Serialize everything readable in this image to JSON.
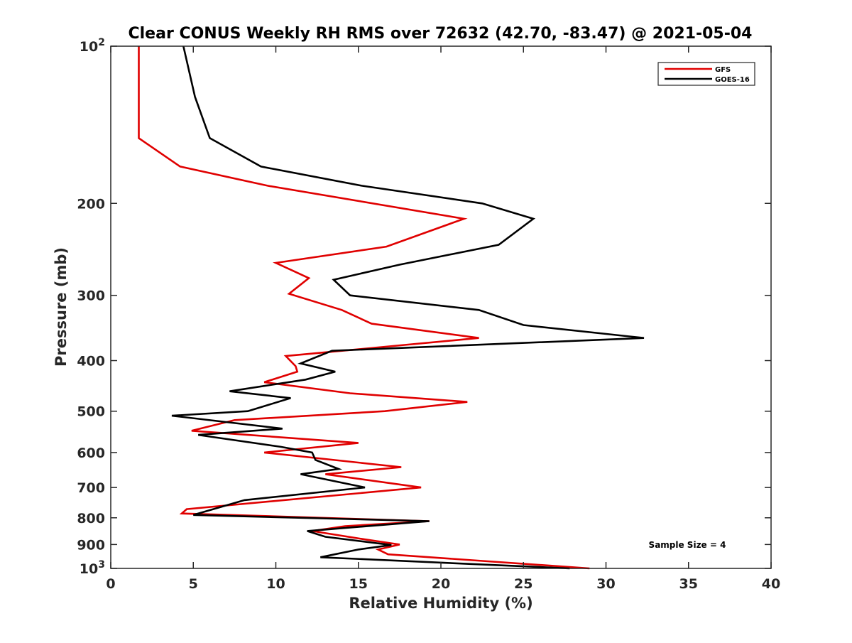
{
  "chart_data": {
    "type": "line",
    "title": "Clear CONUS Weekly RH RMS over 72632 (42.70, -83.47) @ 2021-05-04",
    "xlabel": "Relative Humidity (%)",
    "ylabel": "Pressure (mb)",
    "xlim": [
      0,
      40
    ],
    "ylim": [
      100,
      1000
    ],
    "yscale": "log",
    "y_reversed": true,
    "grid": false,
    "legend_position": "top-right",
    "x_ticks": [
      0,
      5,
      10,
      15,
      20,
      25,
      30,
      35,
      40
    ],
    "x_tick_labels": [
      "0",
      "5",
      "10",
      "15",
      "20",
      "25",
      "30",
      "35",
      "40"
    ],
    "y_ticks": [
      100,
      200,
      300,
      400,
      500,
      600,
      700,
      800,
      900,
      1000
    ],
    "y_tick_labels": [
      {
        "base": "10",
        "exp": "2"
      },
      {
        "base": "200",
        "exp": ""
      },
      {
        "base": "300",
        "exp": ""
      },
      {
        "base": "400",
        "exp": ""
      },
      {
        "base": "500",
        "exp": ""
      },
      {
        "base": "600",
        "exp": ""
      },
      {
        "base": "700",
        "exp": ""
      },
      {
        "base": "800",
        "exp": ""
      },
      {
        "base": "900",
        "exp": ""
      },
      {
        "base": "10",
        "exp": "3"
      }
    ],
    "annotation": "Sample Size = 4",
    "series": [
      {
        "name": "GFS",
        "color": "#e00000",
        "points": [
          [
            1.7,
            100
          ],
          [
            1.7,
            125
          ],
          [
            1.7,
            150
          ],
          [
            4.2,
            170
          ],
          [
            9.5,
            185
          ],
          [
            21.4,
            214
          ],
          [
            16.7,
            242
          ],
          [
            10.0,
            260
          ],
          [
            12.0,
            278
          ],
          [
            10.8,
            298
          ],
          [
            14.0,
            320
          ],
          [
            15.8,
            340
          ],
          [
            22.3,
            362
          ],
          [
            10.6,
            392
          ],
          [
            11.2,
            410
          ],
          [
            11.3,
            420
          ],
          [
            9.3,
            440
          ],
          [
            14.5,
            462
          ],
          [
            21.6,
            480
          ],
          [
            16.6,
            500
          ],
          [
            7.5,
            520
          ],
          [
            4.9,
            545
          ],
          [
            15.0,
            575
          ],
          [
            9.3,
            600
          ],
          [
            17.6,
            640
          ],
          [
            13.0,
            660
          ],
          [
            18.8,
            700
          ],
          [
            4.6,
            770
          ],
          [
            4.3,
            785
          ],
          [
            19.3,
            812
          ],
          [
            14.2,
            830
          ],
          [
            12.2,
            848
          ],
          [
            15.4,
            880
          ],
          [
            17.5,
            900
          ],
          [
            16.2,
            920
          ],
          [
            16.8,
            940
          ],
          [
            29.0,
            1000
          ]
        ]
      },
      {
        "name": "GOES-16",
        "color": "#000000",
        "points": [
          [
            4.4,
            100
          ],
          [
            5.1,
            125
          ],
          [
            6.0,
            150
          ],
          [
            9.1,
            170
          ],
          [
            15.2,
            185
          ],
          [
            22.5,
            200
          ],
          [
            25.6,
            214
          ],
          [
            23.5,
            240
          ],
          [
            17.5,
            262
          ],
          [
            13.5,
            280
          ],
          [
            14.5,
            300
          ],
          [
            22.3,
            320
          ],
          [
            25.0,
            342
          ],
          [
            32.3,
            362
          ],
          [
            13.4,
            383
          ],
          [
            11.5,
            405
          ],
          [
            13.6,
            420
          ],
          [
            11.8,
            435
          ],
          [
            7.2,
            458
          ],
          [
            10.9,
            472
          ],
          [
            8.3,
            500
          ],
          [
            3.7,
            510
          ],
          [
            10.4,
            540
          ],
          [
            5.3,
            555
          ],
          [
            10.3,
            585
          ],
          [
            12.2,
            600
          ],
          [
            12.4,
            620
          ],
          [
            13.8,
            645
          ],
          [
            11.5,
            660
          ],
          [
            15.4,
            700
          ],
          [
            8.1,
            740
          ],
          [
            5.0,
            790
          ],
          [
            19.3,
            812
          ],
          [
            11.9,
            848
          ],
          [
            13.0,
            870
          ],
          [
            17.0,
            902
          ],
          [
            15.0,
            920
          ],
          [
            12.7,
            952
          ],
          [
            27.8,
            1000
          ]
        ]
      }
    ]
  }
}
